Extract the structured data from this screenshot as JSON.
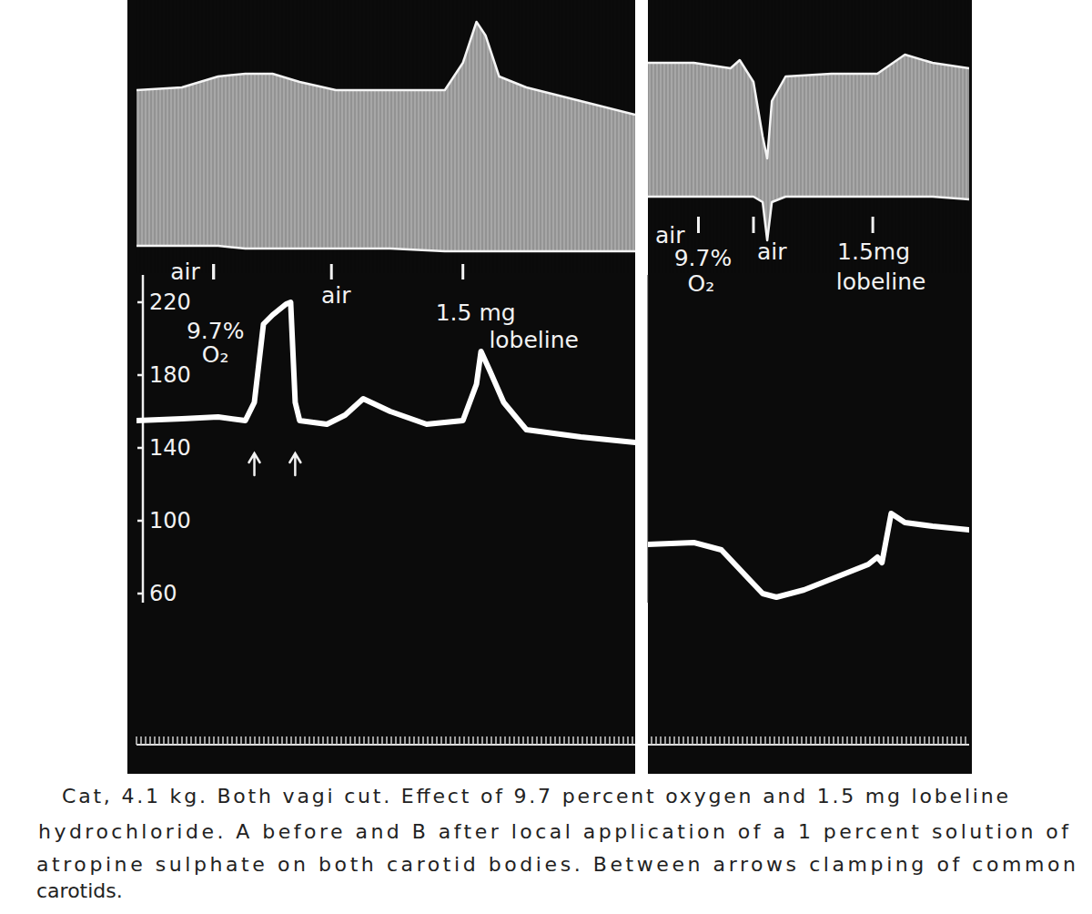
{
  "chart_data": [
    {
      "type": "line",
      "xlim": [
        0,
        110
      ],
      "ylim": [
        55,
        235
      ],
      "yticks": [
        60,
        100,
        140,
        180,
        220
      ],
      "tick_labels": "y",
      "y2lim": [
        0,
        100
      ],
      "x": [
        0,
        10,
        18,
        24,
        26,
        28,
        30,
        33,
        34,
        35,
        36,
        42,
        46,
        50,
        56,
        64,
        72,
        75,
        76,
        78,
        81,
        86,
        98,
        110
      ],
      "series": [
        {
          "color": "#ffffff",
          "values": [
            155,
            156,
            157,
            155,
            165,
            208,
            213,
            219,
            220,
            165,
            155,
            153,
            158,
            167,
            160,
            153,
            155,
            175,
            193,
            182,
            165,
            150,
            146,
            143
          ]
        },
        {
          "type": "band",
          "axis": "y2",
          "color": "#d4d4d4",
          "x": [
            0,
            10,
            18,
            24,
            30,
            36,
            44,
            56,
            68,
            72,
            75,
            77,
            80,
            86,
            98,
            110
          ],
          "values": [
            67,
            68,
            72,
            73,
            73,
            70,
            67,
            67,
            67,
            77,
            92,
            87,
            72,
            68,
            63,
            58
          ],
          "lower": [
            10,
            10,
            10,
            9,
            9,
            9,
            9,
            9,
            8,
            8,
            8,
            8,
            8,
            8,
            8,
            8
          ]
        }
      ],
      "annotations": [
        {
          "x": 17,
          "text": [
            "air"
          ]
        },
        {
          "x": 17,
          "text": [
            "9.7%",
            "O₂"
          ]
        },
        {
          "x": 43,
          "text": [
            "air"
          ]
        },
        {
          "x": 72,
          "text": [
            "1.5 mg",
            "lobeline"
          ]
        }
      ],
      "arrows_x": [
        26,
        35
      ]
    },
    {
      "type": "line",
      "xlim": [
        0,
        70
      ],
      "ylim": [
        55,
        235
      ],
      "tick_labels": false,
      "y2lim": [
        0,
        100
      ],
      "x": [
        0,
        10,
        16,
        22,
        25,
        28,
        34,
        42,
        48,
        50,
        51,
        53,
        56,
        62,
        70
      ],
      "series": [
        {
          "color": "#ffffff",
          "values": [
            87,
            88,
            84,
            68,
            60,
            58,
            62,
            70,
            76,
            80,
            77,
            104,
            99,
            97,
            95
          ]
        },
        {
          "type": "band",
          "axis": "y2",
          "color": "#d4d4d4",
          "x": [
            0,
            10,
            18,
            20,
            23,
            25,
            26,
            27,
            30,
            40,
            50,
            56,
            62,
            70
          ],
          "values": [
            77,
            77,
            75,
            78,
            70,
            50,
            42,
            63,
            72,
            73,
            73,
            80,
            77,
            75
          ],
          "lower": [
            28,
            28,
            28,
            28,
            28,
            26,
            12,
            26,
            28,
            28,
            28,
            28,
            28,
            27
          ]
        }
      ],
      "annotations": [
        {
          "x": 11,
          "text": [
            "air"
          ]
        },
        {
          "x": 11,
          "text": [
            "9.7%",
            "O₂"
          ]
        },
        {
          "x": 23,
          "text": [
            "air"
          ]
        },
        {
          "x": 49,
          "text": [
            "1.5mg",
            "lobeline"
          ]
        }
      ]
    }
  ],
  "caption": [
    "Cat, 4.1 kg. Both vagi cut. Effect of 9.7 percent oxygen and 1.5 mg lobeline",
    "hydrochloride. A before and B after local application of a 1 percent solution of",
    "atropine sulphate on both carotid bodies. Between arrows clamping of common",
    "carotids."
  ]
}
